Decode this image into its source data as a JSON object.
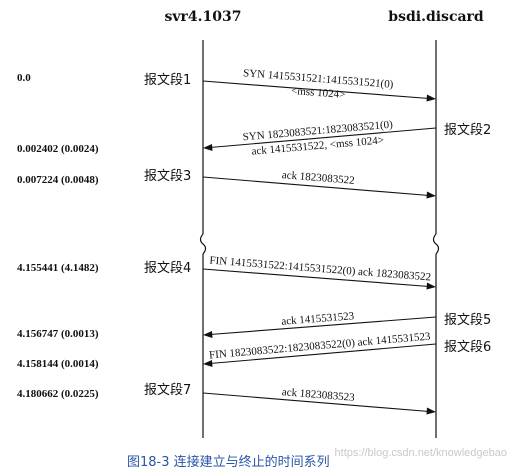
{
  "hosts": {
    "left": "svr4.1037",
    "right": "bsdi.discard"
  },
  "times": [
    "0.0",
    "0.002402 (0.0024)",
    "0.007224 (0.0048)",
    "4.155441 (4.1482)",
    "4.156747 (0.0013)",
    "4.158144 (0.0014)",
    "4.180662 (0.0225)"
  ],
  "segments": [
    {
      "label": "报文段1",
      "side": "left",
      "lines": [
        "SYN 1415531521:1415531521(0)",
        "<mss 1024>"
      ]
    },
    {
      "label": "报文段2",
      "side": "right",
      "lines": [
        "SYN 1823083521:1823083521(0)",
        "ack 1415531522, <mss 1024>"
      ]
    },
    {
      "label": "报文段3",
      "side": "left",
      "lines": [
        "ack 1823083522"
      ]
    },
    {
      "label": "报文段4",
      "side": "left",
      "lines": [
        "FIN 1415531522:1415531522(0) ack 1823083522"
      ]
    },
    {
      "label": "报文段5",
      "side": "right",
      "lines": [
        "ack 1415531523"
      ]
    },
    {
      "label": "报文段6",
      "side": "right",
      "lines": [
        "FIN 1823083522:1823083522(0) ack 1415531523"
      ]
    },
    {
      "label": "报文段7",
      "side": "left",
      "lines": [
        "ack 1823083523"
      ]
    }
  ],
  "caption": "图18-3  连接建立与终止的时间系列",
  "watermark": "https://blog.csdn.net/knowledgebao",
  "colors": {
    "ink": "#111111",
    "caption": "#2a56a6",
    "watermark": "#c9c9c9"
  }
}
